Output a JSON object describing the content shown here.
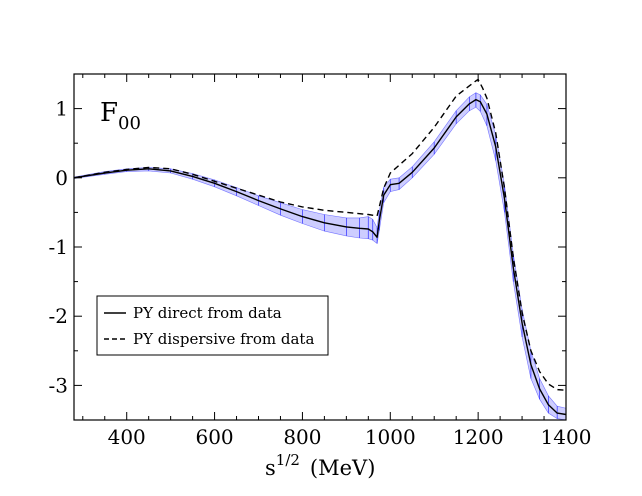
{
  "chart_data": {
    "type": "line",
    "title": "",
    "panel_label": "F",
    "panel_label_sub": "00",
    "xlabel_base": "s",
    "xlabel_sup": "1/2",
    "xlabel_unit": "(MeV)",
    "xlim": [
      280,
      1400
    ],
    "ylim": [
      -3.5,
      1.5
    ],
    "xticks": [
      400,
      600,
      800,
      1000,
      1200,
      1400
    ],
    "yticks": [
      1,
      0,
      -1,
      -2,
      -3
    ],
    "xtick_labels": [
      "400",
      "600",
      "800",
      "1000",
      "1200",
      "1400"
    ],
    "ytick_labels": [
      "1",
      "0",
      "-1",
      "-2",
      "-3"
    ],
    "legend_position": "lower-left",
    "series": [
      {
        "name": "PY direct from data",
        "style": "solid",
        "color": "#000000",
        "x": [
          280,
          350,
          400,
          450,
          500,
          550,
          600,
          650,
          700,
          750,
          800,
          850,
          900,
          930,
          950,
          960,
          970,
          975,
          985,
          1000,
          1020,
          1050,
          1100,
          1150,
          1180,
          1195,
          1205,
          1220,
          1240,
          1260,
          1280,
          1300,
          1320,
          1340,
          1360,
          1380,
          1400
        ],
        "y": [
          0.0,
          0.07,
          0.11,
          0.13,
          0.1,
          0.02,
          -0.08,
          -0.2,
          -0.33,
          -0.45,
          -0.56,
          -0.65,
          -0.71,
          -0.73,
          -0.74,
          -0.78,
          -0.86,
          -0.62,
          -0.25,
          -0.1,
          -0.08,
          0.08,
          0.43,
          0.88,
          1.07,
          1.13,
          1.1,
          0.92,
          0.45,
          -0.3,
          -1.3,
          -2.1,
          -2.7,
          -3.05,
          -3.28,
          -3.4,
          -3.42
        ]
      },
      {
        "name": "PY dispersive from data",
        "style": "dashed",
        "color": "#000000",
        "x": [
          280,
          350,
          400,
          450,
          500,
          550,
          600,
          650,
          700,
          750,
          800,
          850,
          900,
          950,
          970,
          975,
          985,
          1000,
          1050,
          1100,
          1150,
          1180,
          1195,
          1200,
          1210,
          1220,
          1240,
          1260,
          1280,
          1300,
          1320,
          1340,
          1360,
          1380,
          1400
        ],
        "y": [
          0.0,
          0.08,
          0.12,
          0.15,
          0.13,
          0.05,
          -0.05,
          -0.15,
          -0.25,
          -0.35,
          -0.42,
          -0.47,
          -0.5,
          -0.53,
          -0.55,
          -0.42,
          -0.15,
          0.07,
          0.35,
          0.73,
          1.18,
          1.33,
          1.4,
          1.42,
          1.3,
          1.15,
          0.65,
          -0.15,
          -1.15,
          -1.95,
          -2.5,
          -2.8,
          -2.98,
          -3.06,
          -3.07
        ]
      }
    ],
    "error_band": {
      "name": "PY direct from data uncertainty",
      "color": "#1c1cff",
      "x": [
        280,
        350,
        400,
        450,
        500,
        550,
        600,
        650,
        700,
        750,
        800,
        850,
        900,
        930,
        950,
        960,
        970,
        975,
        985,
        1000,
        1020,
        1050,
        1100,
        1150,
        1180,
        1195,
        1205,
        1220,
        1240,
        1260,
        1280,
        1300,
        1320,
        1340,
        1360,
        1380,
        1400
      ],
      "lower": [
        -0.01,
        0.05,
        0.09,
        0.1,
        0.07,
        -0.02,
        -0.13,
        -0.26,
        -0.4,
        -0.54,
        -0.66,
        -0.77,
        -0.84,
        -0.87,
        -0.88,
        -0.9,
        -0.95,
        -0.76,
        -0.36,
        -0.2,
        -0.17,
        0.0,
        0.34,
        0.78,
        0.97,
        1.02,
        0.96,
        0.75,
        0.25,
        -0.5,
        -1.5,
        -2.3,
        -2.9,
        -3.2,
        -3.4,
        -3.48,
        -3.5
      ],
      "upper": [
        0.01,
        0.09,
        0.13,
        0.15,
        0.13,
        0.06,
        -0.03,
        -0.14,
        -0.26,
        -0.36,
        -0.46,
        -0.53,
        -0.58,
        -0.58,
        -0.56,
        -0.6,
        -0.72,
        -0.48,
        -0.14,
        -0.02,
        0.0,
        0.16,
        0.52,
        0.97,
        1.17,
        1.23,
        1.2,
        1.06,
        0.62,
        -0.1,
        -1.1,
        -1.9,
        -2.5,
        -2.9,
        -3.15,
        -3.3,
        -3.33
      ]
    }
  }
}
